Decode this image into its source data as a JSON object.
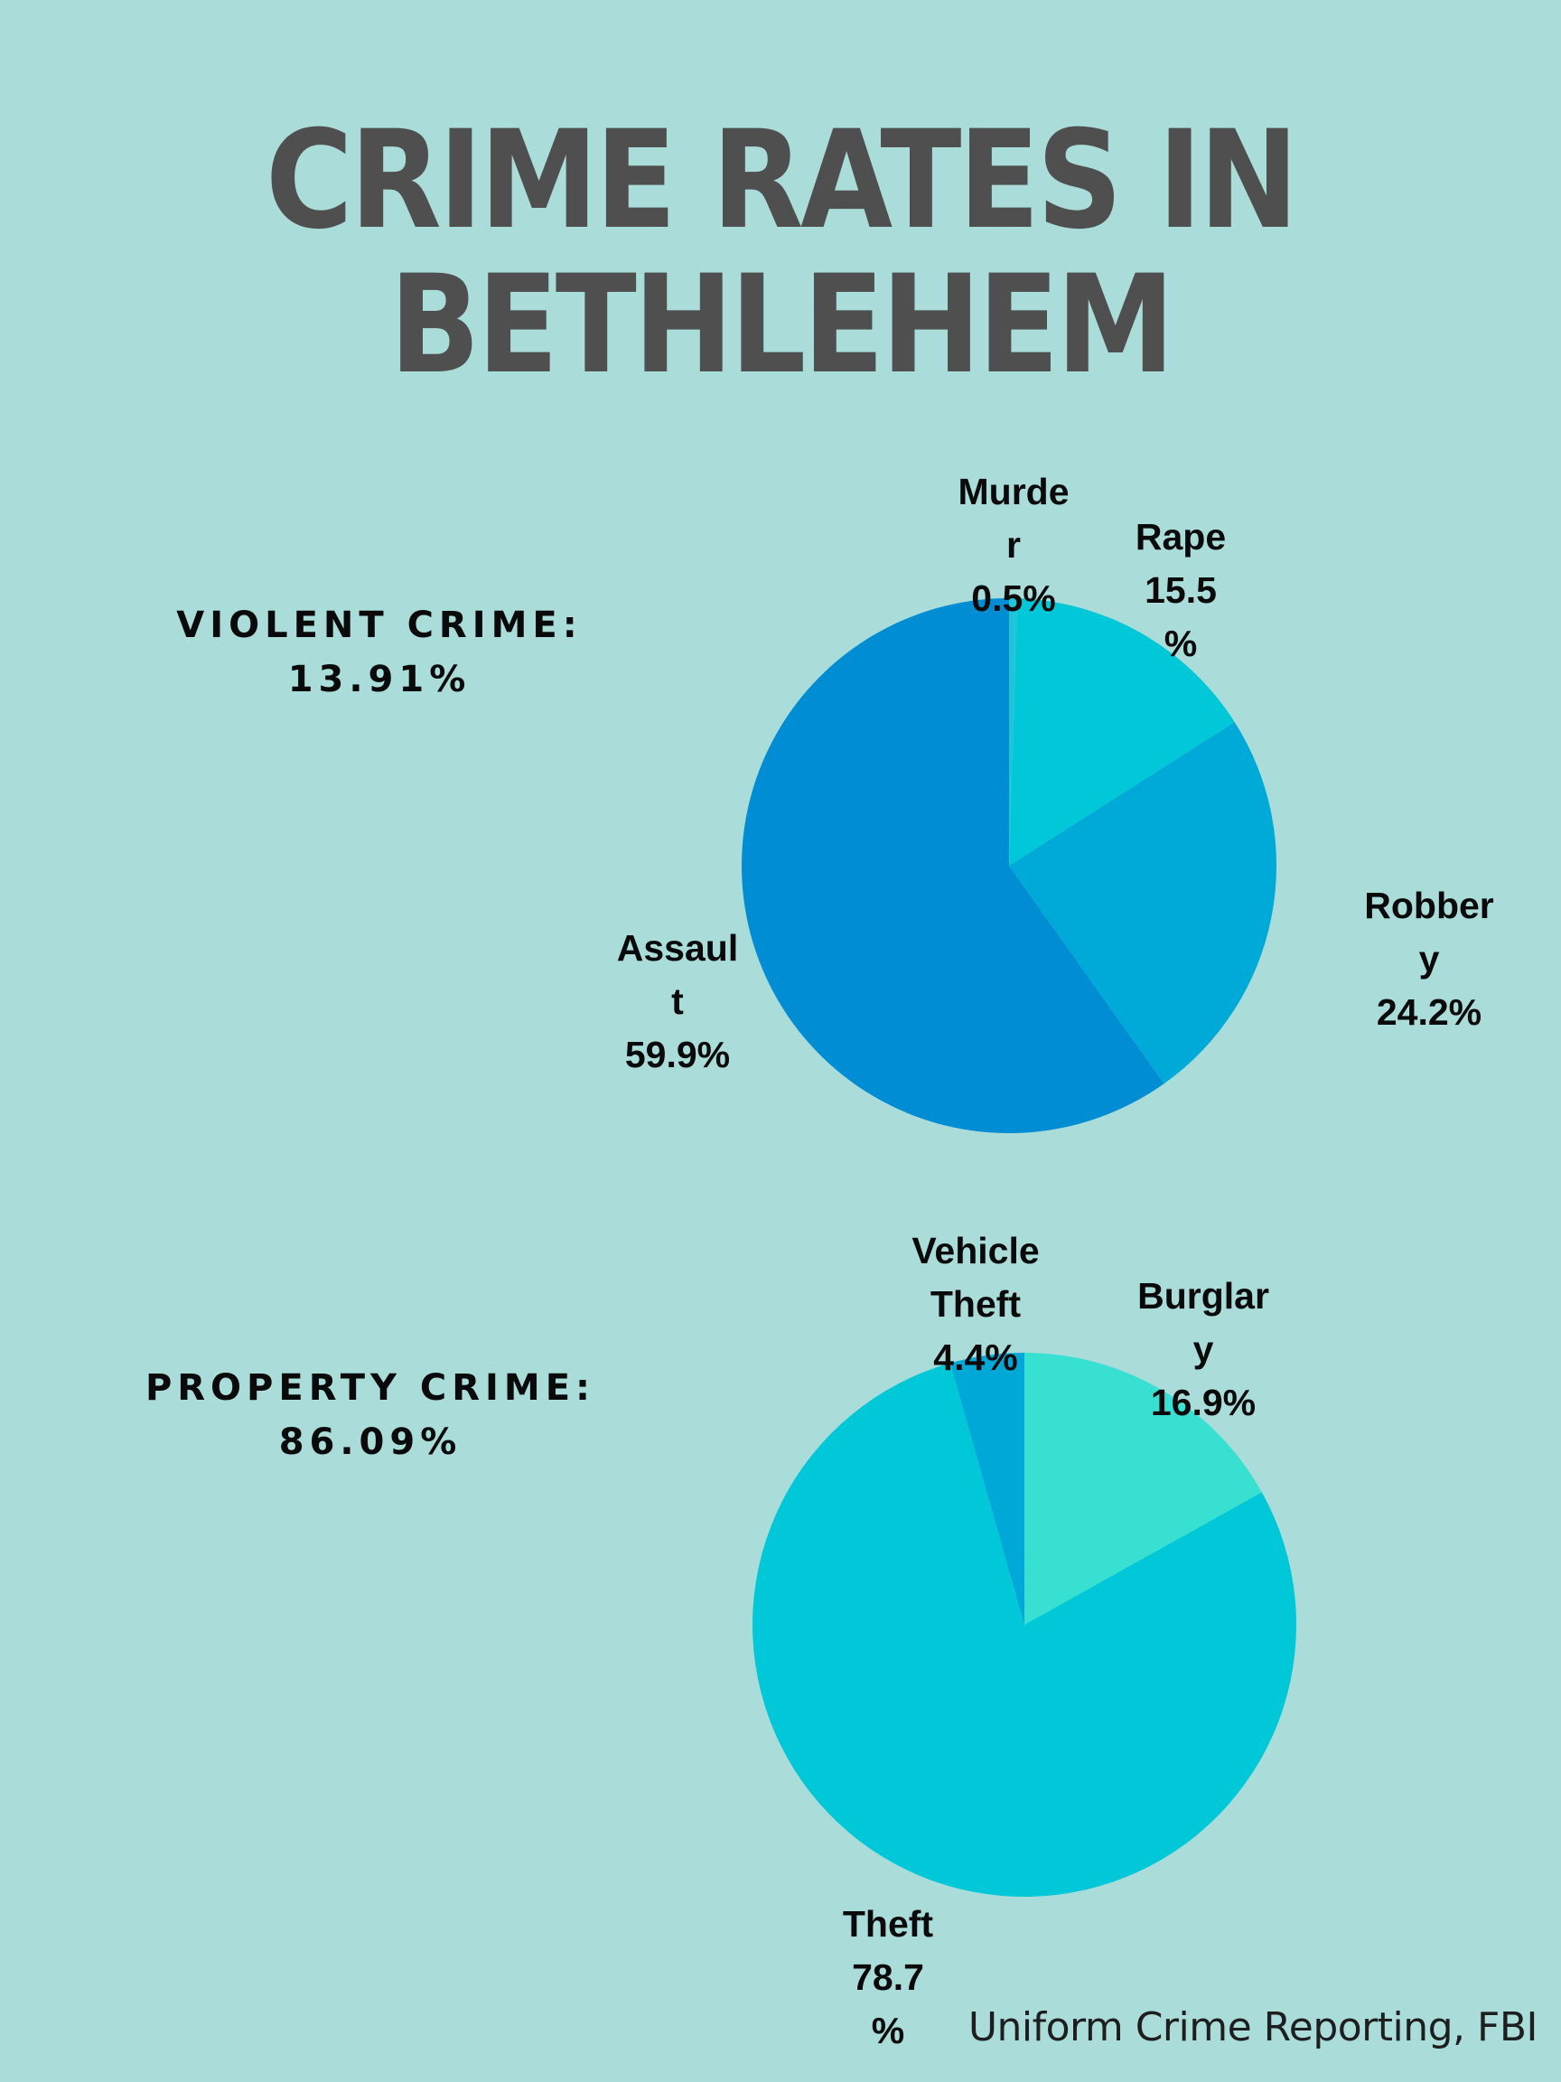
{
  "title_lines": [
    "CRIME RATES IN",
    "BETHLEHEM"
  ],
  "violent": {
    "heading": "VIOLENT CRIME:",
    "value": "13.91%"
  },
  "property": {
    "heading": "PROPERTY CRIME:",
    "value": "86.09%"
  },
  "source": "Uniform Crime Reporting, FBI",
  "chart_data": [
    {
      "type": "pie",
      "slices": [
        {
          "name": "Murder",
          "value": 0.5,
          "color": "#20c5d8",
          "label_lines": [
            "Murde",
            "r",
            "0.5%"
          ]
        },
        {
          "name": "Rape",
          "value": 15.5,
          "color": "#00c8d8",
          "label_lines": [
            "Rape",
            "15.5",
            "%"
          ]
        },
        {
          "name": "Robbery",
          "value": 24.2,
          "color": "#00aad8",
          "label_lines": [
            "Robber",
            "y",
            "24.2%"
          ]
        },
        {
          "name": "Assault",
          "value": 59.9,
          "color": "#008dd4",
          "label_lines": [
            "Assaul",
            "t",
            "59.9%"
          ]
        }
      ]
    },
    {
      "type": "pie",
      "slices": [
        {
          "name": "Burglary",
          "value": 16.9,
          "color": "#38e0d2",
          "label_lines": [
            "Burglar",
            "y",
            "16.9%"
          ]
        },
        {
          "name": "Theft",
          "value": 78.7,
          "color": "#00c8d8",
          "label_lines": [
            "Theft",
            "78.7",
            "%"
          ]
        },
        {
          "name": "Vehicle Theft",
          "value": 4.4,
          "color": "#00a8d8",
          "label_lines": [
            "Vehicle",
            "Theft",
            "4.4%"
          ]
        }
      ]
    }
  ]
}
